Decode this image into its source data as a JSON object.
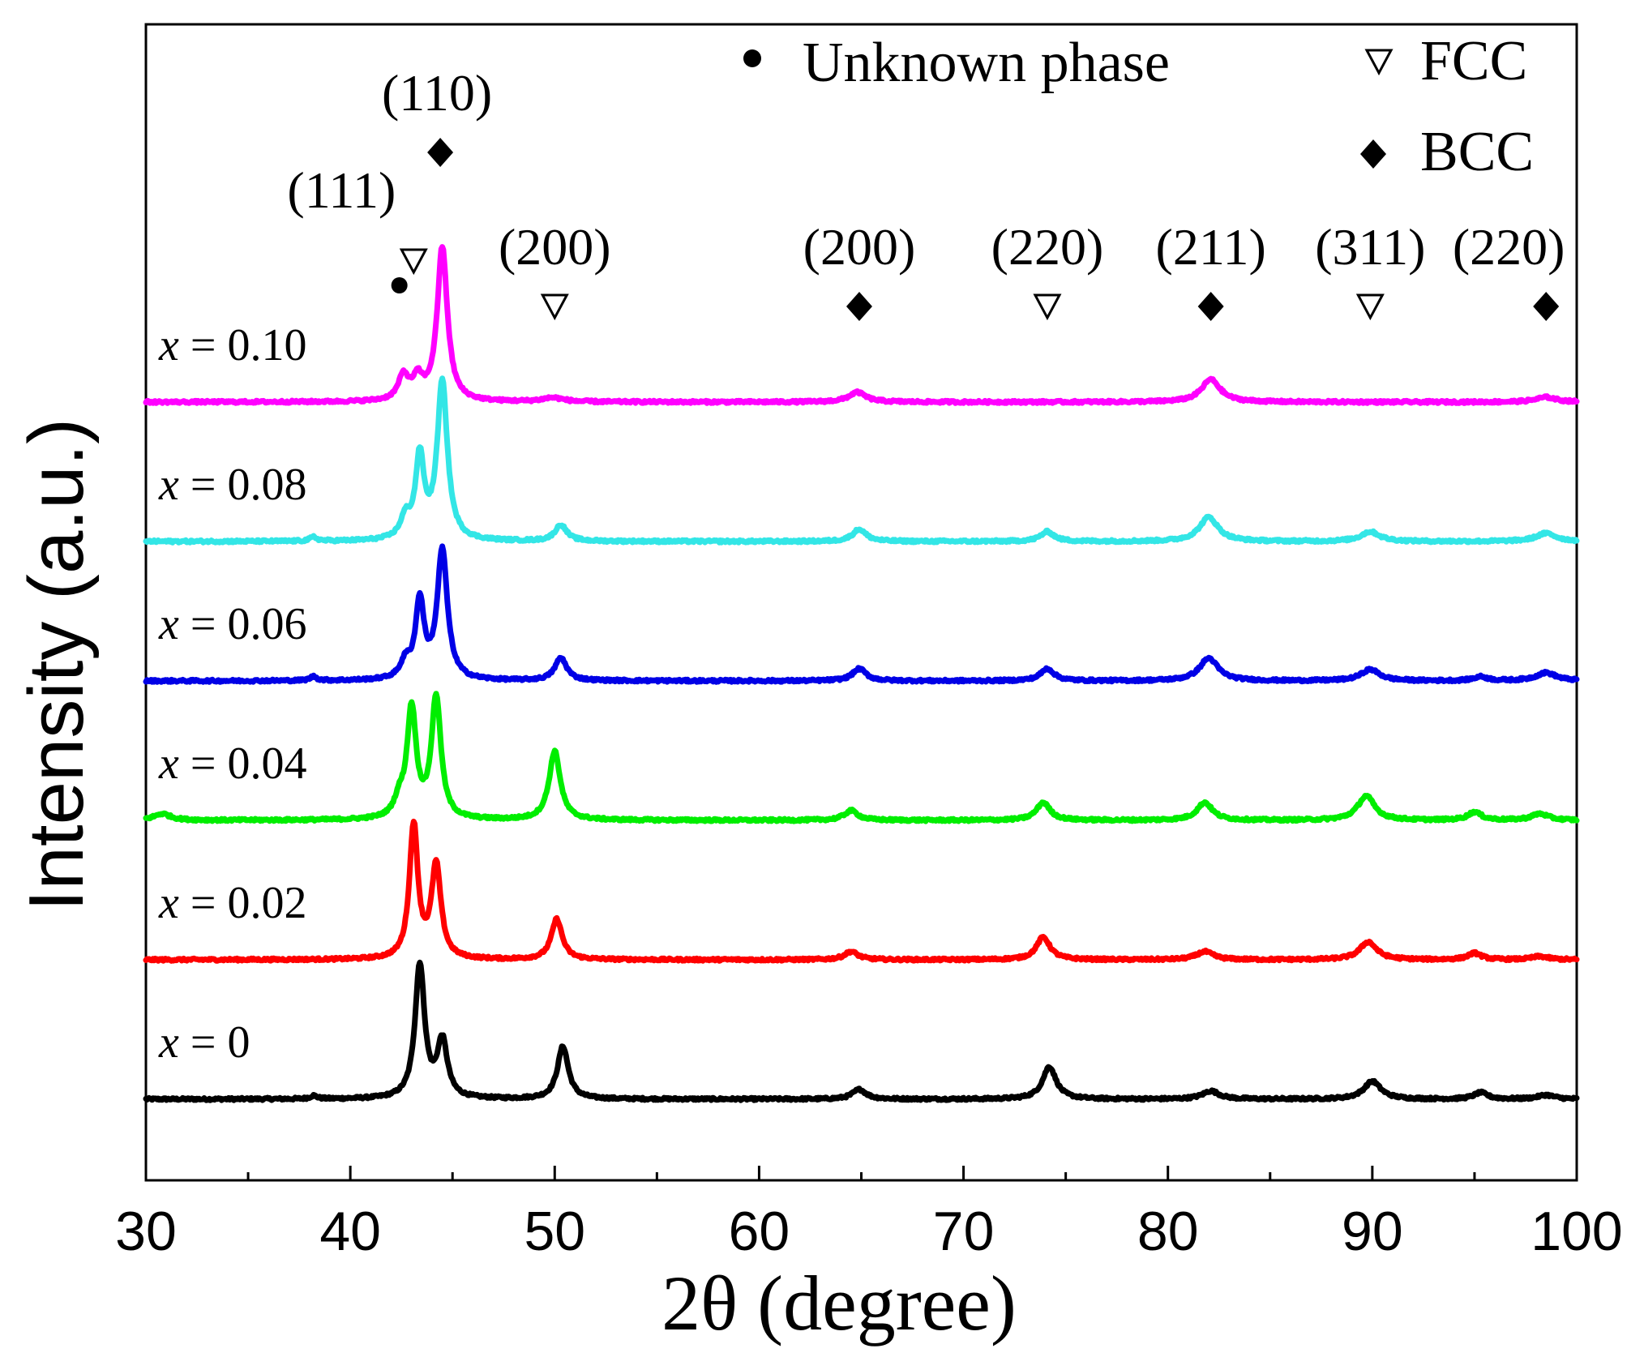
{
  "chart_data": {
    "type": "line",
    "title": "",
    "xlabel": "2θ (degree)",
    "ylabel": "Intensity (a.u.)",
    "xlim": [
      30,
      100
    ],
    "xticks": [
      30,
      40,
      50,
      60,
      70,
      80,
      90,
      100
    ],
    "grid": false,
    "legend": {
      "placement": "top-right",
      "entries": [
        {
          "name": "Unknown phase",
          "marker": "filled-circle"
        },
        {
          "name": "FCC",
          "marker": "open-down-triangle"
        },
        {
          "name": "BCC",
          "marker": "filled-diamond"
        }
      ]
    },
    "series": [
      {
        "name": "x = 0",
        "label_prefix": "x",
        "label_rest": " = 0",
        "color": "#000000",
        "offset": 0,
        "peaks": [
          [
            38.2,
            4,
            0.2
          ],
          [
            43.4,
            165,
            0.28
          ],
          [
            44.5,
            70,
            0.3
          ],
          [
            50.4,
            65,
            0.32
          ],
          [
            64.9,
            12,
            0.4
          ],
          [
            74.2,
            40,
            0.4
          ],
          [
            82.1,
            10,
            0.5
          ],
          [
            90.0,
            22,
            0.5
          ],
          [
            95.3,
            8,
            0.4
          ],
          [
            98.5,
            5,
            0.5
          ]
        ]
      },
      {
        "name": "x = 0.02",
        "label_prefix": "x",
        "label_rest": " = 0.02",
        "color": "#ff0000",
        "offset": 1,
        "peaks": [
          [
            43.1,
            165,
            0.25
          ],
          [
            44.2,
            115,
            0.28
          ],
          [
            50.1,
            50,
            0.32
          ],
          [
            64.5,
            10,
            0.4
          ],
          [
            73.9,
            28,
            0.4
          ],
          [
            81.8,
            10,
            0.5
          ],
          [
            89.8,
            22,
            0.5
          ],
          [
            95.0,
            8,
            0.4
          ],
          [
            98.2,
            4,
            0.5
          ]
        ]
      },
      {
        "name": "x = 0.04",
        "label_prefix": "x",
        "label_rest": " = 0.04",
        "color": "#00ee00",
        "offset": 2,
        "peaks": [
          [
            30.8,
            8,
            0.5
          ],
          [
            42.4,
            20,
            0.3
          ],
          [
            43.0,
            135,
            0.27
          ],
          [
            44.2,
            150,
            0.28
          ],
          [
            50.0,
            85,
            0.33
          ],
          [
            64.5,
            12,
            0.4
          ],
          [
            73.9,
            22,
            0.4
          ],
          [
            81.8,
            22,
            0.45
          ],
          [
            89.7,
            30,
            0.5
          ],
          [
            95.0,
            10,
            0.4
          ],
          [
            98.2,
            8,
            0.5
          ]
        ]
      },
      {
        "name": "x = 0.06",
        "label_prefix": "x",
        "label_rest": " = 0.06",
        "color": "#0000e6",
        "offset": 3,
        "peaks": [
          [
            38.2,
            5,
            0.2
          ],
          [
            42.7,
            20,
            0.3
          ],
          [
            43.4,
            95,
            0.25
          ],
          [
            44.5,
            160,
            0.3
          ],
          [
            50.3,
            28,
            0.35
          ],
          [
            64.9,
            15,
            0.4
          ],
          [
            74.1,
            15,
            0.4
          ],
          [
            82.0,
            28,
            0.55
          ],
          [
            89.9,
            14,
            0.55
          ],
          [
            95.3,
            5,
            0.4
          ],
          [
            98.5,
            10,
            0.6
          ]
        ]
      },
      {
        "name": "x = 0.08",
        "label_prefix": "x",
        "label_rest": " = 0.08",
        "color": "#33e6e6",
        "offset": 4,
        "peaks": [
          [
            38.2,
            5,
            0.2
          ],
          [
            42.7,
            25,
            0.3
          ],
          [
            43.4,
            100,
            0.25
          ],
          [
            44.5,
            195,
            0.3
          ],
          [
            50.3,
            20,
            0.35
          ],
          [
            64.9,
            15,
            0.4
          ],
          [
            74.1,
            12,
            0.4
          ],
          [
            82.0,
            30,
            0.55
          ],
          [
            89.9,
            12,
            0.55
          ],
          [
            98.5,
            10,
            0.6
          ]
        ]
      },
      {
        "name": "x = 0.10",
        "label_prefix": "x",
        "label_rest": " = 0.10",
        "color": "#ff00ff",
        "offset": 5,
        "peaks": [
          [
            42.6,
            30,
            0.3
          ],
          [
            43.3,
            25,
            0.3
          ],
          [
            44.5,
            190,
            0.3
          ],
          [
            49.9,
            5,
            0.6
          ],
          [
            64.8,
            12,
            0.5
          ],
          [
            82.1,
            28,
            0.55
          ],
          [
            98.5,
            6,
            0.6
          ]
        ]
      }
    ],
    "annotations": [
      {
        "text": "(110)",
        "marker": "filled-diamond",
        "x": 44.4,
        "tier": "top"
      },
      {
        "text": "(111)",
        "marker": "open-down-triangle",
        "x": 43.1,
        "tier": "mid"
      },
      {
        "text": "",
        "marker": "filled-circle",
        "x": 42.4,
        "tier": "low"
      },
      {
        "text": "(200)",
        "marker": "open-down-triangle",
        "x": 50.0,
        "tier": "base"
      },
      {
        "text": "(200)",
        "marker": "filled-diamond",
        "x": 64.9,
        "tier": "base"
      },
      {
        "text": "(220)",
        "marker": "open-down-triangle",
        "x": 74.1,
        "tier": "base"
      },
      {
        "text": "(211)",
        "marker": "filled-diamond",
        "x": 82.1,
        "tier": "base"
      },
      {
        "text": "(311)",
        "marker": "open-down-triangle",
        "x": 89.9,
        "tier": "base"
      },
      {
        "text": "(220)",
        "marker": "filled-diamond",
        "x": 98.5,
        "tier": "base"
      }
    ]
  }
}
